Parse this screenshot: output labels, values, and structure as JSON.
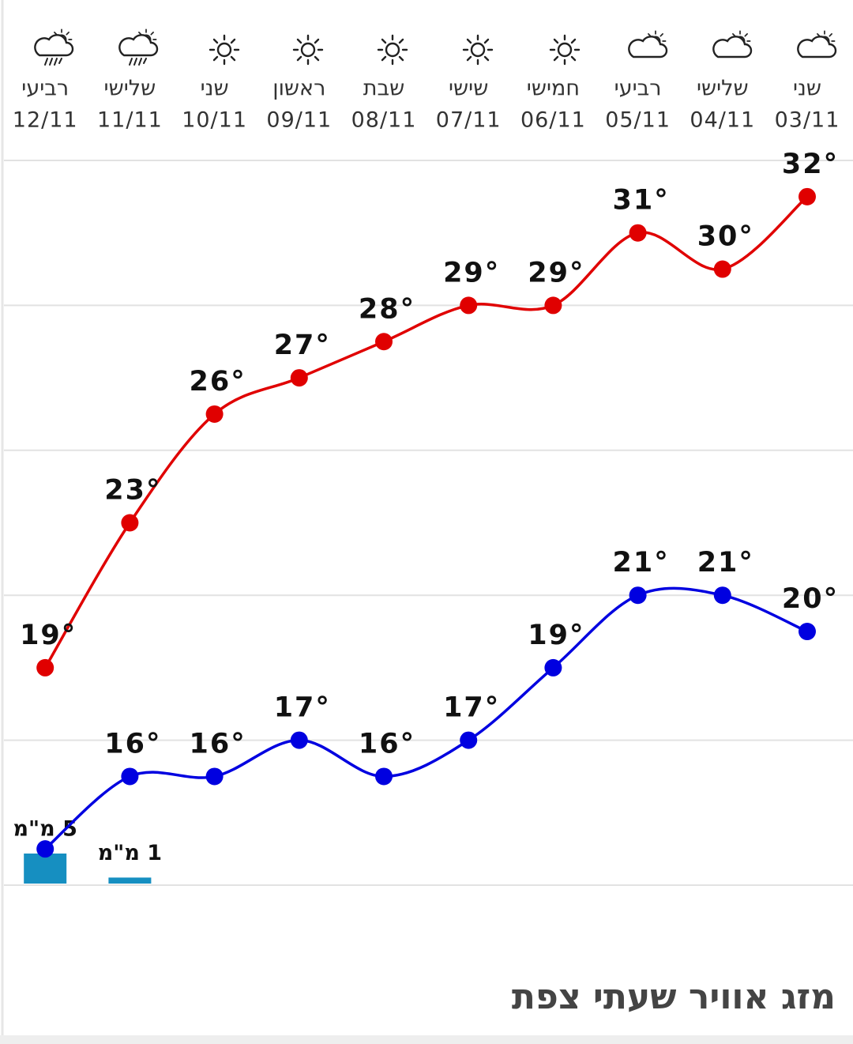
{
  "chart_data": {
    "type": "line",
    "title": "מזג אוויר שעתי צפת",
    "categories": [
      "03/11",
      "04/11",
      "05/11",
      "06/11",
      "07/11",
      "08/11",
      "09/11",
      "10/11",
      "11/11",
      "12/11"
    ],
    "day_names": [
      "שני",
      "שלישי",
      "רביעי",
      "חמישי",
      "שישי",
      "שבת",
      "ראשון",
      "שני",
      "שלישי",
      "רביעי"
    ],
    "ylim": [
      13,
      33
    ],
    "yticks": [
      13,
      17,
      21,
      25,
      29,
      33
    ],
    "grid": true,
    "series": [
      {
        "color": "#e00000",
        "values": [
          32,
          30,
          31,
          29,
          29,
          28,
          27,
          26,
          23,
          19
        ],
        "value_labels": [
          "32°",
          "30°",
          "31°",
          "29°",
          "29°",
          "28°",
          "27°",
          "26°",
          "23°",
          "19°"
        ]
      },
      {
        "color": "#0000e0",
        "values": [
          20,
          21,
          21,
          19,
          17,
          16,
          17,
          16,
          16,
          14
        ],
        "value_labels": [
          "20°",
          "21°",
          "21°",
          "19°",
          "17°",
          "16°",
          "17°",
          "16°",
          "16°",
          null
        ]
      }
    ],
    "precipitation": {
      "color": "#168fc1",
      "values": [
        null,
        null,
        null,
        null,
        null,
        null,
        null,
        null,
        1,
        5
      ],
      "value_labels": [
        null,
        null,
        null,
        null,
        null,
        null,
        null,
        null,
        "1 מ\"מ",
        "5 מ\"מ"
      ]
    }
  }
}
